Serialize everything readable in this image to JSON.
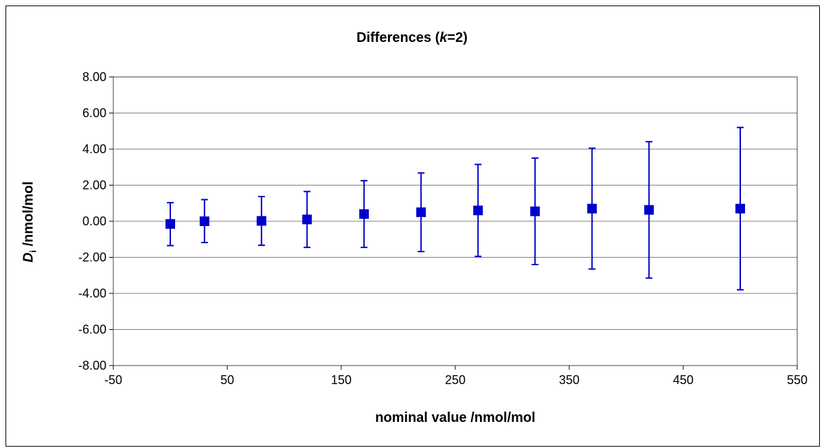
{
  "chart_data": {
    "type": "scatter",
    "title": {
      "prefix": "Differences (",
      "k_symbol": "k",
      "suffix": "=2)"
    },
    "xlabel": "nominal value /nmol/mol",
    "ylabel": {
      "symbol": "D",
      "subscript": "i",
      "unit": " /nmol/mol"
    },
    "xlim": [
      -50,
      550
    ],
    "ylim": [
      -8,
      8
    ],
    "x_ticks": [
      -50,
      50,
      150,
      250,
      350,
      450,
      550
    ],
    "x_tick_labels": [
      "-50",
      "50",
      "150",
      "250",
      "350",
      "450",
      "550"
    ],
    "y_ticks": [
      -8,
      -6,
      -4,
      -2,
      0,
      2,
      4,
      6,
      8
    ],
    "y_tick_labels": [
      "-8.00",
      "-6.00",
      "-4.00",
      "-2.00",
      "0.00",
      "2.00",
      "4.00",
      "6.00",
      "8.00"
    ],
    "grid": "horizontal",
    "legend": "none",
    "marker": "square",
    "color": "#0000cc",
    "points": [
      {
        "x": 0,
        "y": -0.15,
        "lower": -1.35,
        "upper": 1.03
      },
      {
        "x": 30,
        "y": 0.0,
        "lower": -1.18,
        "upper": 1.2
      },
      {
        "x": 80,
        "y": 0.02,
        "lower": -1.33,
        "upper": 1.37
      },
      {
        "x": 120,
        "y": 0.1,
        "lower": -1.45,
        "upper": 1.65
      },
      {
        "x": 170,
        "y": 0.4,
        "lower": -1.45,
        "upper": 2.25
      },
      {
        "x": 220,
        "y": 0.5,
        "lower": -1.68,
        "upper": 2.68
      },
      {
        "x": 270,
        "y": 0.6,
        "lower": -1.95,
        "upper": 3.15
      },
      {
        "x": 320,
        "y": 0.55,
        "lower": -2.4,
        "upper": 3.5
      },
      {
        "x": 370,
        "y": 0.7,
        "lower": -2.65,
        "upper": 4.05
      },
      {
        "x": 420,
        "y": 0.63,
        "lower": -3.15,
        "upper": 4.41
      },
      {
        "x": 500,
        "y": 0.7,
        "lower": -3.8,
        "upper": 5.2
      }
    ]
  }
}
